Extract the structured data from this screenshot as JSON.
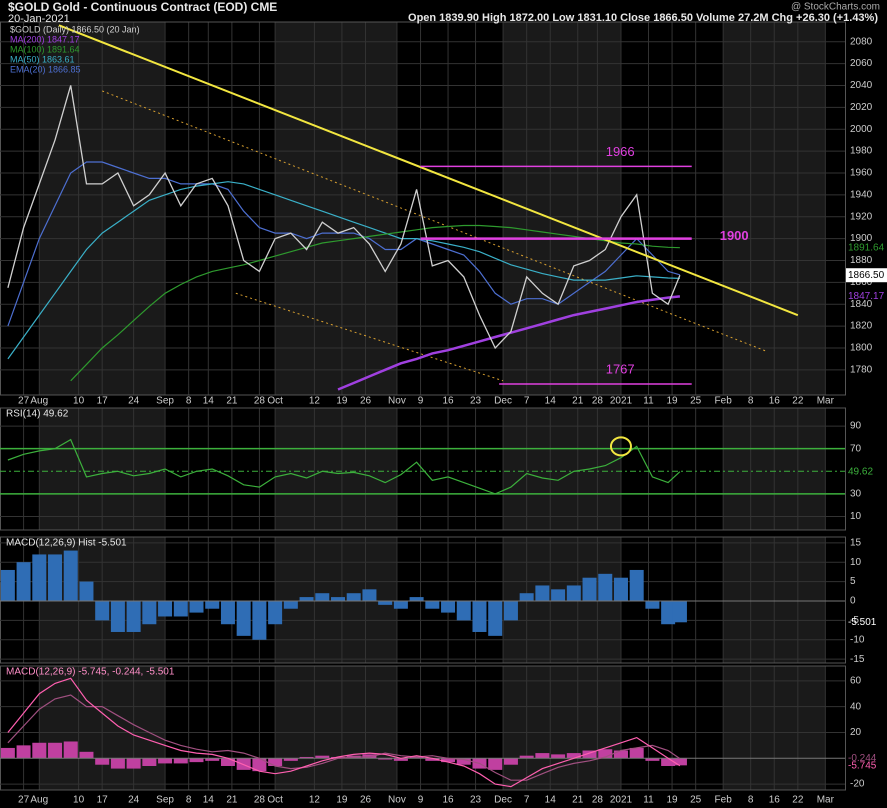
{
  "chart_data": [
    {
      "type": "line",
      "title": "$GOLD Gold - Continuous Contract (EOD) CME",
      "date": "20-Jan-2021",
      "quote": "Open 1839.90 High 1872.00 Low 1831.10 Close 1866.50 Volume 27.2M Chg +26.30 (+1.43%)",
      "source": "@ StockCharts.com",
      "x": [
        2,
        6,
        10,
        14,
        18,
        22,
        26,
        30,
        34,
        38,
        42,
        46,
        50,
        54,
        58,
        62,
        66,
        70,
        74,
        78,
        82,
        86,
        90,
        94,
        98,
        102,
        106,
        110,
        114,
        118,
        122,
        126,
        130,
        134,
        138,
        142,
        146,
        150,
        154,
        158,
        162,
        166,
        170,
        173
      ],
      "xlim": [
        0,
        215
      ],
      "xticks": [
        {
          "value": 6,
          "label": "27"
        },
        {
          "value": 10,
          "label": "Aug"
        },
        {
          "value": 20,
          "label": "10"
        },
        {
          "value": 26,
          "label": "17"
        },
        {
          "value": 34,
          "label": "24"
        },
        {
          "value": 42,
          "label": "Sep"
        },
        {
          "value": 48,
          "label": "8"
        },
        {
          "value": 53,
          "label": "14"
        },
        {
          "value": 59,
          "label": "21"
        },
        {
          "value": 66,
          "label": "28"
        },
        {
          "value": 70,
          "label": "Oct"
        },
        {
          "value": 80,
          "label": "12"
        },
        {
          "value": 87,
          "label": "19"
        },
        {
          "value": 93,
          "label": "26"
        },
        {
          "value": 101,
          "label": "Nov"
        },
        {
          "value": 107,
          "label": "9"
        },
        {
          "value": 114,
          "label": "16"
        },
        {
          "value": 121,
          "label": "23"
        },
        {
          "value": 128,
          "label": "Dec"
        },
        {
          "value": 134,
          "label": "7"
        },
        {
          "value": 140,
          "label": "14"
        },
        {
          "value": 147,
          "label": "21"
        },
        {
          "value": 152,
          "label": "28"
        },
        {
          "value": 158,
          "label": "2021"
        },
        {
          "value": 165,
          "label": "11"
        },
        {
          "value": 171,
          "label": "19"
        },
        {
          "value": 177,
          "label": "25"
        },
        {
          "value": 184,
          "label": "Feb"
        },
        {
          "value": 191,
          "label": "8"
        },
        {
          "value": 197,
          "label": "16"
        },
        {
          "value": 203,
          "label": "22"
        },
        {
          "value": 210,
          "label": "Mar"
        }
      ],
      "ylim": [
        1757,
        2098
      ],
      "yticks": [
        1780,
        1800,
        1820,
        1840,
        1860,
        1880,
        1900,
        1920,
        1940,
        1960,
        1980,
        2000,
        2020,
        2040,
        2060,
        2080
      ],
      "series": [
        {
          "name": "$GOLD (Daily) 1866.50 (20 Jan)",
          "color": "#d0d0d0",
          "last_label": "1866.50",
          "values": [
            1855,
            1910,
            1950,
            1990,
            2040,
            1950,
            1950,
            1960,
            1930,
            1940,
            1960,
            1930,
            1950,
            1955,
            1930,
            1880,
            1870,
            1900,
            1905,
            1890,
            1915,
            1905,
            1910,
            1895,
            1870,
            1895,
            1945,
            1875,
            1880,
            1865,
            1830,
            1800,
            1815,
            1865,
            1850,
            1840,
            1875,
            1880,
            1890,
            1920,
            1940,
            1850,
            1840,
            1866.5
          ]
        },
        {
          "name": "MA(200) 1847.17",
          "color": "#a040e0",
          "last_label": "1847.17",
          "values": [
            null,
            null,
            null,
            null,
            null,
            null,
            null,
            null,
            null,
            null,
            null,
            null,
            null,
            null,
            null,
            null,
            null,
            null,
            null,
            null,
            null,
            1762,
            1768,
            1774,
            1780,
            1786,
            1790,
            1795,
            1798,
            1802,
            1806,
            1810,
            1814,
            1818,
            1822,
            1826,
            1830,
            1833,
            1836,
            1839,
            1842,
            1844,
            1846,
            1847.17
          ]
        },
        {
          "name": "MA(100) 1891.64",
          "color": "#2e9a2e",
          "last_label": "1891.64",
          "values": [
            null,
            null,
            null,
            null,
            1770,
            1785,
            1800,
            1812,
            1825,
            1838,
            1850,
            1858,
            1865,
            1870,
            1873,
            1876,
            1880,
            1884,
            1888,
            1892,
            1896,
            1898,
            1900,
            1902,
            1904,
            1906,
            1908,
            1910,
            1911,
            1912,
            1912,
            1911,
            1910,
            1908,
            1906,
            1904,
            1902,
            1900,
            1898,
            1896,
            1895,
            1893,
            1892,
            1891.64
          ]
        },
        {
          "name": "MA(50) 1863.61",
          "color": "#3ab0c8",
          "values": [
            1790,
            1810,
            1830,
            1850,
            1870,
            1890,
            1905,
            1915,
            1925,
            1935,
            1940,
            1945,
            1948,
            1950,
            1952,
            1950,
            1945,
            1940,
            1935,
            1930,
            1925,
            1920,
            1915,
            1910,
            1905,
            1900,
            1900,
            1898,
            1895,
            1892,
            1888,
            1882,
            1876,
            1872,
            1868,
            1865,
            1862,
            1862,
            1862,
            1864,
            1866,
            1865,
            1864,
            1863.61
          ]
        },
        {
          "name": "EMA(20) 1866.85",
          "color": "#4d6fd1",
          "values": [
            1820,
            1860,
            1900,
            1930,
            1960,
            1970,
            1970,
            1965,
            1960,
            1955,
            1955,
            1950,
            1950,
            1950,
            1945,
            1925,
            1910,
            1905,
            1905,
            1900,
            1905,
            1905,
            1905,
            1900,
            1890,
            1890,
            1900,
            1895,
            1890,
            1885,
            1870,
            1850,
            1840,
            1845,
            1845,
            1840,
            1850,
            1860,
            1870,
            1885,
            1900,
            1885,
            1870,
            1866.85
          ]
        }
      ],
      "levels": [
        {
          "value": 1966,
          "label": "1966",
          "x": [
            107,
            176
          ]
        },
        {
          "value": 1900,
          "label": "1900",
          "x": [
            107,
            176
          ]
        },
        {
          "value": 1767,
          "label": "1767",
          "x": [
            127,
            176
          ]
        }
      ],
      "trendline": {
        "x": [
          15,
          203
        ],
        "y": [
          2095,
          1830
        ]
      },
      "channels": [
        {
          "x": [
            26,
            195
          ],
          "y": [
            2035,
            1797
          ]
        },
        {
          "x": [
            60,
            128
          ],
          "y": [
            1850,
            1770
          ]
        }
      ]
    },
    {
      "type": "line",
      "ylim": [
        -2,
        106
      ],
      "yticks": [
        10,
        30,
        70,
        90
      ],
      "levels": [
        70,
        30
      ],
      "midline": 50,
      "series": [
        {
          "name": "RSI(14) 49.62",
          "color": "#3cb03c",
          "last_label": "49.62",
          "values": [
            60,
            65,
            68,
            70,
            78,
            45,
            48,
            50,
            46,
            48,
            52,
            45,
            50,
            52,
            46,
            38,
            36,
            45,
            48,
            44,
            50,
            48,
            49,
            46,
            40,
            47,
            58,
            42,
            45,
            40,
            35,
            30,
            36,
            48,
            44,
            42,
            50,
            52,
            55,
            62,
            72,
            45,
            40,
            49.62
          ]
        }
      ],
      "highlight": {
        "x": 158,
        "y": 72
      }
    },
    {
      "type": "bar",
      "name": "MACD(12,26,9) Hist -5.501",
      "color": "#2f6db5",
      "last_label": "-5.501",
      "ylim": [
        -16,
        16.5
      ],
      "yticks": [
        -15,
        -10,
        -5,
        0,
        5,
        10,
        15
      ],
      "values": [
        8,
        10,
        12,
        12,
        13,
        5,
        -5,
        -8,
        -8,
        -6,
        -4,
        -4,
        -3,
        -2,
        -6,
        -9,
        -10,
        -6,
        -2,
        1,
        2,
        1,
        2,
        3,
        -1,
        -2,
        1,
        -2,
        -3,
        -5,
        -8,
        -9,
        -5,
        2,
        4,
        3,
        4,
        6,
        7,
        6,
        8,
        -2,
        -6,
        -5.501
      ]
    },
    {
      "type": "line",
      "title": "MACD(12,26,9) -5.745, -0.244, -5.501",
      "hist_color": "#c040a0",
      "ylim": [
        -24.6,
        71.5
      ],
      "yticks": [
        -20,
        20,
        40,
        60
      ],
      "series": [
        {
          "color": "#ff5fb0",
          "last_label": "-5.745",
          "values": [
            20,
            35,
            50,
            58,
            62,
            45,
            35,
            25,
            18,
            14,
            10,
            6,
            4,
            3,
            0,
            -5,
            -10,
            -12,
            -10,
            -6,
            -2,
            1,
            3,
            4,
            3,
            0,
            2,
            0,
            -3,
            -6,
            -12,
            -20,
            -22,
            -15,
            -8,
            -4,
            0,
            4,
            8,
            12,
            16,
            8,
            0,
            -5.745
          ]
        },
        {
          "color": "#a05080",
          "last_label": "-0.244",
          "values": [
            12,
            25,
            38,
            46,
            49,
            40,
            40,
            33,
            26,
            20,
            14,
            10,
            7,
            5,
            6,
            4,
            0,
            -6,
            -8,
            -7,
            -4,
            0,
            1,
            1,
            4,
            2,
            1,
            2,
            0,
            -1,
            -4,
            -11,
            -17,
            -17,
            -12,
            -7,
            -4,
            -2,
            1,
            6,
            8,
            10,
            6,
            -0.244
          ]
        }
      ]
    }
  ]
}
